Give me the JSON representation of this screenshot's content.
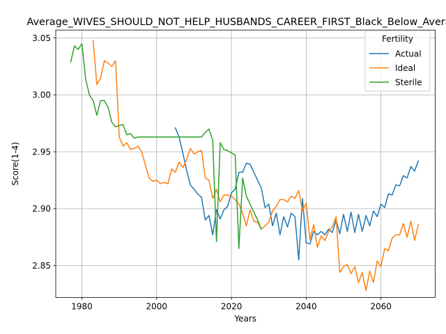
{
  "chart_data": {
    "type": "line",
    "title": "Average_WIVES_SHOULD_NOT_HELP_HUSBANDS_CAREER_FIRST_Black_Below_Average",
    "xlabel": "Years",
    "ylabel": "Score(1-4)",
    "xlim": [
      1973,
      2074.5
    ],
    "ylim": [
      2.822,
      3.057
    ],
    "xticks": [
      1980,
      2000,
      2020,
      2040,
      2060
    ],
    "yticks": [
      2.85,
      2.9,
      2.95,
      3.0,
      3.05
    ],
    "ytick_labels": [
      "2.85",
      "2.90",
      "2.95",
      "3.00",
      "3.05"
    ],
    "grid": true,
    "legend": {
      "title": "Fertility",
      "position": "top-right"
    },
    "series": [
      {
        "name": "Actual",
        "color": "#1f77b4",
        "x": [
          2005,
          2006,
          2007,
          2008,
          2009,
          2010,
          2011,
          2012,
          2013,
          2014,
          2015,
          2016,
          2017,
          2018,
          2019,
          2020,
          2021,
          2022,
          2023,
          2024,
          2025,
          2026,
          2027,
          2028,
          2029,
          2030,
          2031,
          2032,
          2033,
          2034,
          2035,
          2036,
          2037,
          2038,
          2039,
          2040,
          2041,
          2042,
          2043,
          2044,
          2045,
          2046,
          2047,
          2048,
          2049,
          2050,
          2051,
          2052,
          2053,
          2054,
          2055,
          2056,
          2057,
          2058,
          2059,
          2060,
          2061,
          2062,
          2063,
          2064,
          2065,
          2066,
          2067,
          2068,
          2069,
          2070
        ],
        "y": [
          2.971,
          2.963,
          2.949,
          2.934,
          2.921,
          2.917,
          2.913,
          2.91,
          2.89,
          2.894,
          2.877,
          2.899,
          2.891,
          2.899,
          2.902,
          2.914,
          2.917,
          2.932,
          2.932,
          2.94,
          2.939,
          2.932,
          2.925,
          2.918,
          2.901,
          2.904,
          2.885,
          2.896,
          2.877,
          2.893,
          2.884,
          2.896,
          2.893,
          2.855,
          2.909,
          2.87,
          2.869,
          2.88,
          2.877,
          2.88,
          2.877,
          2.882,
          2.879,
          2.89,
          2.878,
          2.895,
          2.88,
          2.897,
          2.879,
          2.895,
          2.88,
          2.894,
          2.885,
          2.898,
          2.893,
          2.904,
          2.901,
          2.913,
          2.912,
          2.921,
          2.92,
          2.929,
          2.927,
          2.937,
          2.933,
          2.942
        ]
      },
      {
        "name": "Ideal",
        "color": "#ff7f0e",
        "x": [
          1983,
          1984,
          1985,
          1986,
          1987,
          1988,
          1989,
          1990,
          1991,
          1992,
          1993,
          1994,
          1995,
          1996,
          1997,
          1998,
          1999,
          2000,
          2001,
          2002,
          2003,
          2004,
          2005,
          2006,
          2007,
          2008,
          2009,
          2010,
          2011,
          2012,
          2013,
          2014,
          2015,
          2016,
          2017,
          2018,
          2019,
          2020,
          2021,
          2022,
          2023,
          2024,
          2025,
          2026,
          2027,
          2028,
          2029,
          2030,
          2031,
          2032,
          2033,
          2034,
          2035,
          2036,
          2037,
          2038,
          2039,
          2040,
          2041,
          2042,
          2043,
          2044,
          2045,
          2046,
          2047,
          2048,
          2049,
          2050,
          2051,
          2052,
          2053,
          2054,
          2055,
          2056,
          2057,
          2058,
          2059,
          2060,
          2061,
          2062,
          2063,
          2064,
          2065,
          2066,
          2067,
          2068,
          2069,
          2070
        ],
        "y": [
          3.048,
          3.009,
          3.015,
          3.03,
          3.028,
          3.025,
          3.03,
          2.963,
          2.955,
          2.958,
          2.952,
          2.953,
          2.955,
          2.95,
          2.938,
          2.927,
          2.924,
          2.925,
          2.922,
          2.923,
          2.922,
          2.935,
          2.932,
          2.941,
          2.936,
          2.943,
          2.953,
          2.948,
          2.95,
          2.951,
          2.927,
          2.925,
          2.909,
          2.917,
          2.906,
          2.912,
          2.912,
          2.911,
          2.908,
          2.904,
          2.896,
          2.885,
          2.899,
          2.889,
          2.888,
          2.882,
          2.885,
          2.888,
          2.898,
          2.902,
          2.908,
          2.908,
          2.906,
          2.911,
          2.909,
          2.916,
          2.898,
          2.905,
          2.873,
          2.886,
          2.866,
          2.876,
          2.872,
          2.88,
          2.884,
          2.893,
          2.844,
          2.849,
          2.851,
          2.843,
          2.849,
          2.835,
          2.844,
          2.828,
          2.845,
          2.835,
          2.854,
          2.849,
          2.865,
          2.863,
          2.874,
          2.877,
          2.877,
          2.887,
          2.875,
          2.889,
          2.872,
          2.886
        ]
      },
      {
        "name": "Sterile",
        "color": "#2ca02c",
        "x": [
          1977,
          1978,
          1979,
          1980,
          1981,
          1982,
          1983,
          1984,
          1985,
          1986,
          1987,
          1988,
          1989,
          1990,
          1991,
          1992,
          1993,
          1994,
          1995,
          1996,
          1997,
          1998,
          1999,
          2000,
          2001,
          2002,
          2003,
          2004,
          2005,
          2006,
          2007,
          2008,
          2009,
          2010,
          2011,
          2012,
          2013,
          2014,
          2015,
          2016,
          2017,
          2018,
          2019,
          2020,
          2021,
          2022,
          2023,
          2024,
          2025,
          2026,
          2027,
          2028
        ],
        "y": [
          3.029,
          3.043,
          3.04,
          3.045,
          3.014,
          3.0,
          2.995,
          2.982,
          2.995,
          2.995,
          2.989,
          2.976,
          2.972,
          2.973,
          2.974,
          2.965,
          2.966,
          2.962,
          2.963,
          2.963,
          2.963,
          2.963,
          2.963,
          2.963,
          2.963,
          2.963,
          2.963,
          2.963,
          2.963,
          2.963,
          2.963,
          2.963,
          2.963,
          2.963,
          2.963,
          2.963,
          2.967,
          2.97,
          2.96,
          2.871,
          2.958,
          2.952,
          2.951,
          2.949,
          2.947,
          2.865,
          2.927,
          2.911,
          2.904,
          2.897,
          2.89,
          2.882
        ]
      }
    ]
  }
}
